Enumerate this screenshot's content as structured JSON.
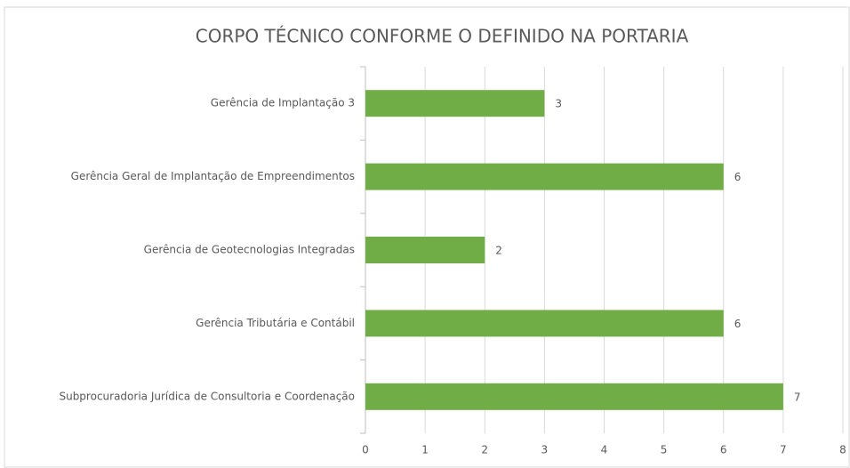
{
  "chart_data": {
    "type": "barh",
    "title": "CORPO TÉCNICO CONFORME O DEFINIDO NA PORTARIA",
    "categories": [
      "Gerência de Implantação 3",
      "Gerência Geral de Implantação de Empreendimentos",
      "Gerência de Geotecnologias Integradas",
      "Gerência Tributária e Contábil",
      "Subprocuradoria Jurídica de Consultoria e Coordenação"
    ],
    "values": [
      3,
      6,
      2,
      6,
      7
    ],
    "color": "#70ad47",
    "xlim": [
      0,
      8
    ],
    "xticks": [
      0,
      1,
      2,
      3,
      4,
      5,
      6,
      7,
      8
    ],
    "grid": true
  }
}
